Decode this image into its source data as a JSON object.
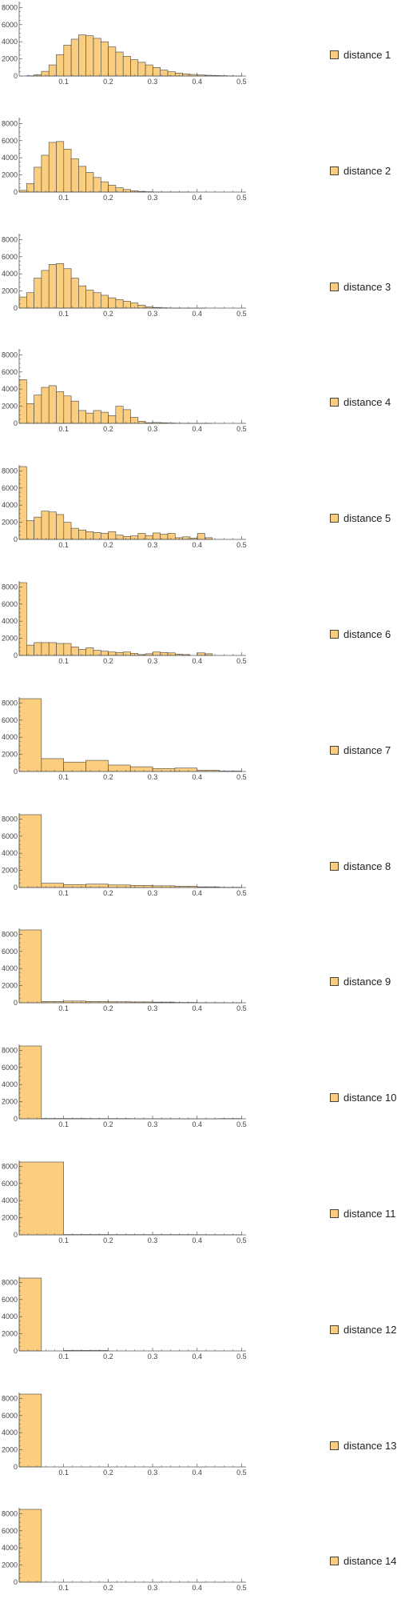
{
  "chart_data": [
    {
      "type": "bar",
      "legend": "distance 1",
      "bin_width": 0.0167,
      "x_start": 0,
      "ylim": [
        0,
        8500
      ],
      "values": [
        0,
        30,
        150,
        550,
        1300,
        2500,
        3600,
        4300,
        4800,
        4700,
        4400,
        4000,
        3400,
        2800,
        2300,
        1900,
        1600,
        1300,
        1000,
        700,
        500,
        350,
        250,
        180,
        120,
        90,
        60,
        40,
        20,
        10
      ]
    },
    {
      "type": "bar",
      "legend": "distance 2",
      "bin_width": 0.0167,
      "x_start": 0,
      "ylim": [
        0,
        8500
      ],
      "values": [
        200,
        1000,
        2900,
        4300,
        5800,
        5900,
        5000,
        3900,
        3000,
        2300,
        1700,
        1200,
        800,
        500,
        300,
        150,
        80,
        40,
        20,
        10,
        5,
        2,
        1,
        0,
        0,
        0,
        0,
        0,
        0,
        0
      ]
    },
    {
      "type": "bar",
      "legend": "distance 3",
      "bin_width": 0.0167,
      "x_start": 0,
      "ylim": [
        0,
        8500
      ],
      "values": [
        1300,
        1800,
        3500,
        4400,
        5100,
        5200,
        4600,
        3500,
        2600,
        2100,
        1800,
        1500,
        1200,
        1000,
        800,
        600,
        350,
        150,
        80,
        40,
        20,
        10,
        5,
        2,
        1,
        0,
        0,
        0,
        0,
        0
      ]
    },
    {
      "type": "bar",
      "legend": "distance 4",
      "bin_width": 0.0167,
      "x_start": 0,
      "ylim": [
        0,
        8500
      ],
      "values": [
        5100,
        2300,
        3300,
        4200,
        4400,
        3700,
        3200,
        2600,
        1500,
        1200,
        1500,
        1300,
        900,
        2000,
        1600,
        700,
        250,
        80,
        100,
        60,
        40,
        20,
        10,
        5,
        2,
        1,
        0,
        0,
        0,
        0
      ]
    },
    {
      "type": "bar",
      "legend": "distance 5",
      "bin_width": 0.0167,
      "x_start": 0,
      "ylim": [
        0,
        8500
      ],
      "values": [
        8500,
        2200,
        2600,
        3300,
        3200,
        2900,
        2000,
        1300,
        1100,
        900,
        800,
        700,
        900,
        500,
        350,
        400,
        700,
        450,
        750,
        600,
        700,
        200,
        300,
        150,
        700,
        200,
        0,
        0,
        0,
        0
      ]
    },
    {
      "type": "bar",
      "legend": "distance 6",
      "bin_width": 0.0167,
      "x_start": 0,
      "ylim": [
        0,
        8500
      ],
      "values": [
        8500,
        1200,
        1500,
        1500,
        1500,
        1400,
        1400,
        1000,
        700,
        900,
        600,
        500,
        400,
        350,
        400,
        250,
        100,
        200,
        400,
        350,
        300,
        150,
        100,
        0,
        300,
        200,
        0,
        0,
        0,
        0
      ]
    },
    {
      "type": "bar",
      "legend": "distance 7",
      "bin_width": 0.05,
      "x_start": 0,
      "ylim": [
        0,
        8500
      ],
      "values": [
        8500,
        1500,
        1100,
        1300,
        750,
        550,
        350,
        400,
        150,
        50
      ]
    },
    {
      "type": "bar",
      "legend": "distance 8",
      "bin_width": 0.05,
      "x_start": 0,
      "ylim": [
        0,
        8500
      ],
      "values": [
        8500,
        500,
        350,
        400,
        300,
        250,
        200,
        150,
        80,
        30
      ]
    },
    {
      "type": "bar",
      "legend": "distance 9",
      "bin_width": 0.05,
      "x_start": 0,
      "ylim": [
        0,
        8500
      ],
      "values": [
        8500,
        150,
        200,
        150,
        120,
        100,
        80,
        40,
        20,
        10
      ]
    },
    {
      "type": "bar",
      "legend": "distance 10",
      "bin_width": 0.05,
      "x_start": 0,
      "ylim": [
        0,
        8500
      ],
      "values": [
        8500,
        40,
        40,
        30,
        30,
        20,
        20,
        10,
        5,
        30
      ]
    },
    {
      "type": "bar",
      "legend": "distance 11",
      "bin_width": 0.1,
      "x_start": 0,
      "ylim": [
        0,
        8500
      ],
      "values": [
        8500,
        40,
        30,
        30,
        20
      ]
    },
    {
      "type": "bar",
      "legend": "distance 12",
      "bin_width": 0.05,
      "x_start": 0,
      "ylim": [
        0,
        8500
      ],
      "values": [
        8500,
        0,
        50,
        50,
        0,
        0,
        0,
        0,
        0,
        0
      ]
    },
    {
      "type": "bar",
      "legend": "distance 13",
      "bin_width": 0.05,
      "x_start": 0,
      "ylim": [
        0,
        8500
      ],
      "values": [
        8500,
        0,
        0,
        0,
        0,
        0,
        0,
        0,
        0,
        0
      ]
    },
    {
      "type": "bar",
      "legend": "distance 14",
      "bin_width": 0.05,
      "x_start": 0,
      "ylim": [
        0,
        8500
      ],
      "values": [
        8500,
        0,
        0,
        0,
        0,
        0,
        0,
        0,
        0,
        0
      ]
    }
  ],
  "axes": {
    "x_ticks": [
      "0.1",
      "0.2",
      "0.3",
      "0.4",
      "0.5"
    ],
    "x_tick_values": [
      0.1,
      0.2,
      0.3,
      0.4,
      0.5
    ],
    "y_ticks": [
      "0",
      "2000",
      "4000",
      "6000",
      "8000"
    ],
    "y_tick_values": [
      0,
      2000,
      4000,
      6000,
      8000
    ],
    "xlim": [
      0,
      0.51
    ]
  },
  "colors": {
    "bar_fill": "#fbcd7e",
    "bar_stroke": "#444444",
    "axis": "#555555"
  }
}
